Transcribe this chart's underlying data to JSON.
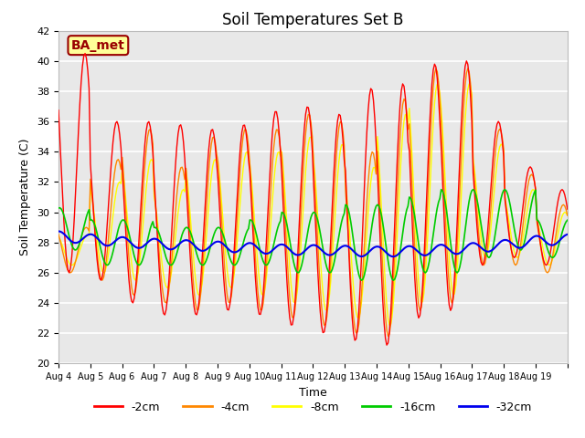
{
  "title": "Soil Temperatures Set B",
  "xlabel": "Time",
  "ylabel": "Soil Temperature (C)",
  "ylim": [
    20,
    42
  ],
  "background_color": "#ffffff",
  "plot_bg_color": "#e8e8e8",
  "annotation_text": "BA_met",
  "annotation_color": "#990000",
  "annotation_bg": "#ffff99",
  "annotation_border": "#990000",
  "x_tick_labels": [
    "Aug 4",
    "Aug 5",
    "Aug 6",
    "Aug 7",
    "Aug 8",
    "Aug 9",
    "Aug 10",
    "Aug 11",
    "Aug 12",
    "Aug 13",
    "Aug 14",
    "Aug 15",
    "Aug 16",
    "Aug 17",
    "Aug 18",
    "Aug 19"
  ],
  "line_colors": [
    "#ff0000",
    "#ff8800",
    "#ffff00",
    "#00cc00",
    "#0000ee"
  ],
  "line_labels": [
    "-2cm",
    "-4cm",
    "-8cm",
    "-16cm",
    "-32cm"
  ],
  "title_fontsize": 12,
  "label_fontsize": 9
}
